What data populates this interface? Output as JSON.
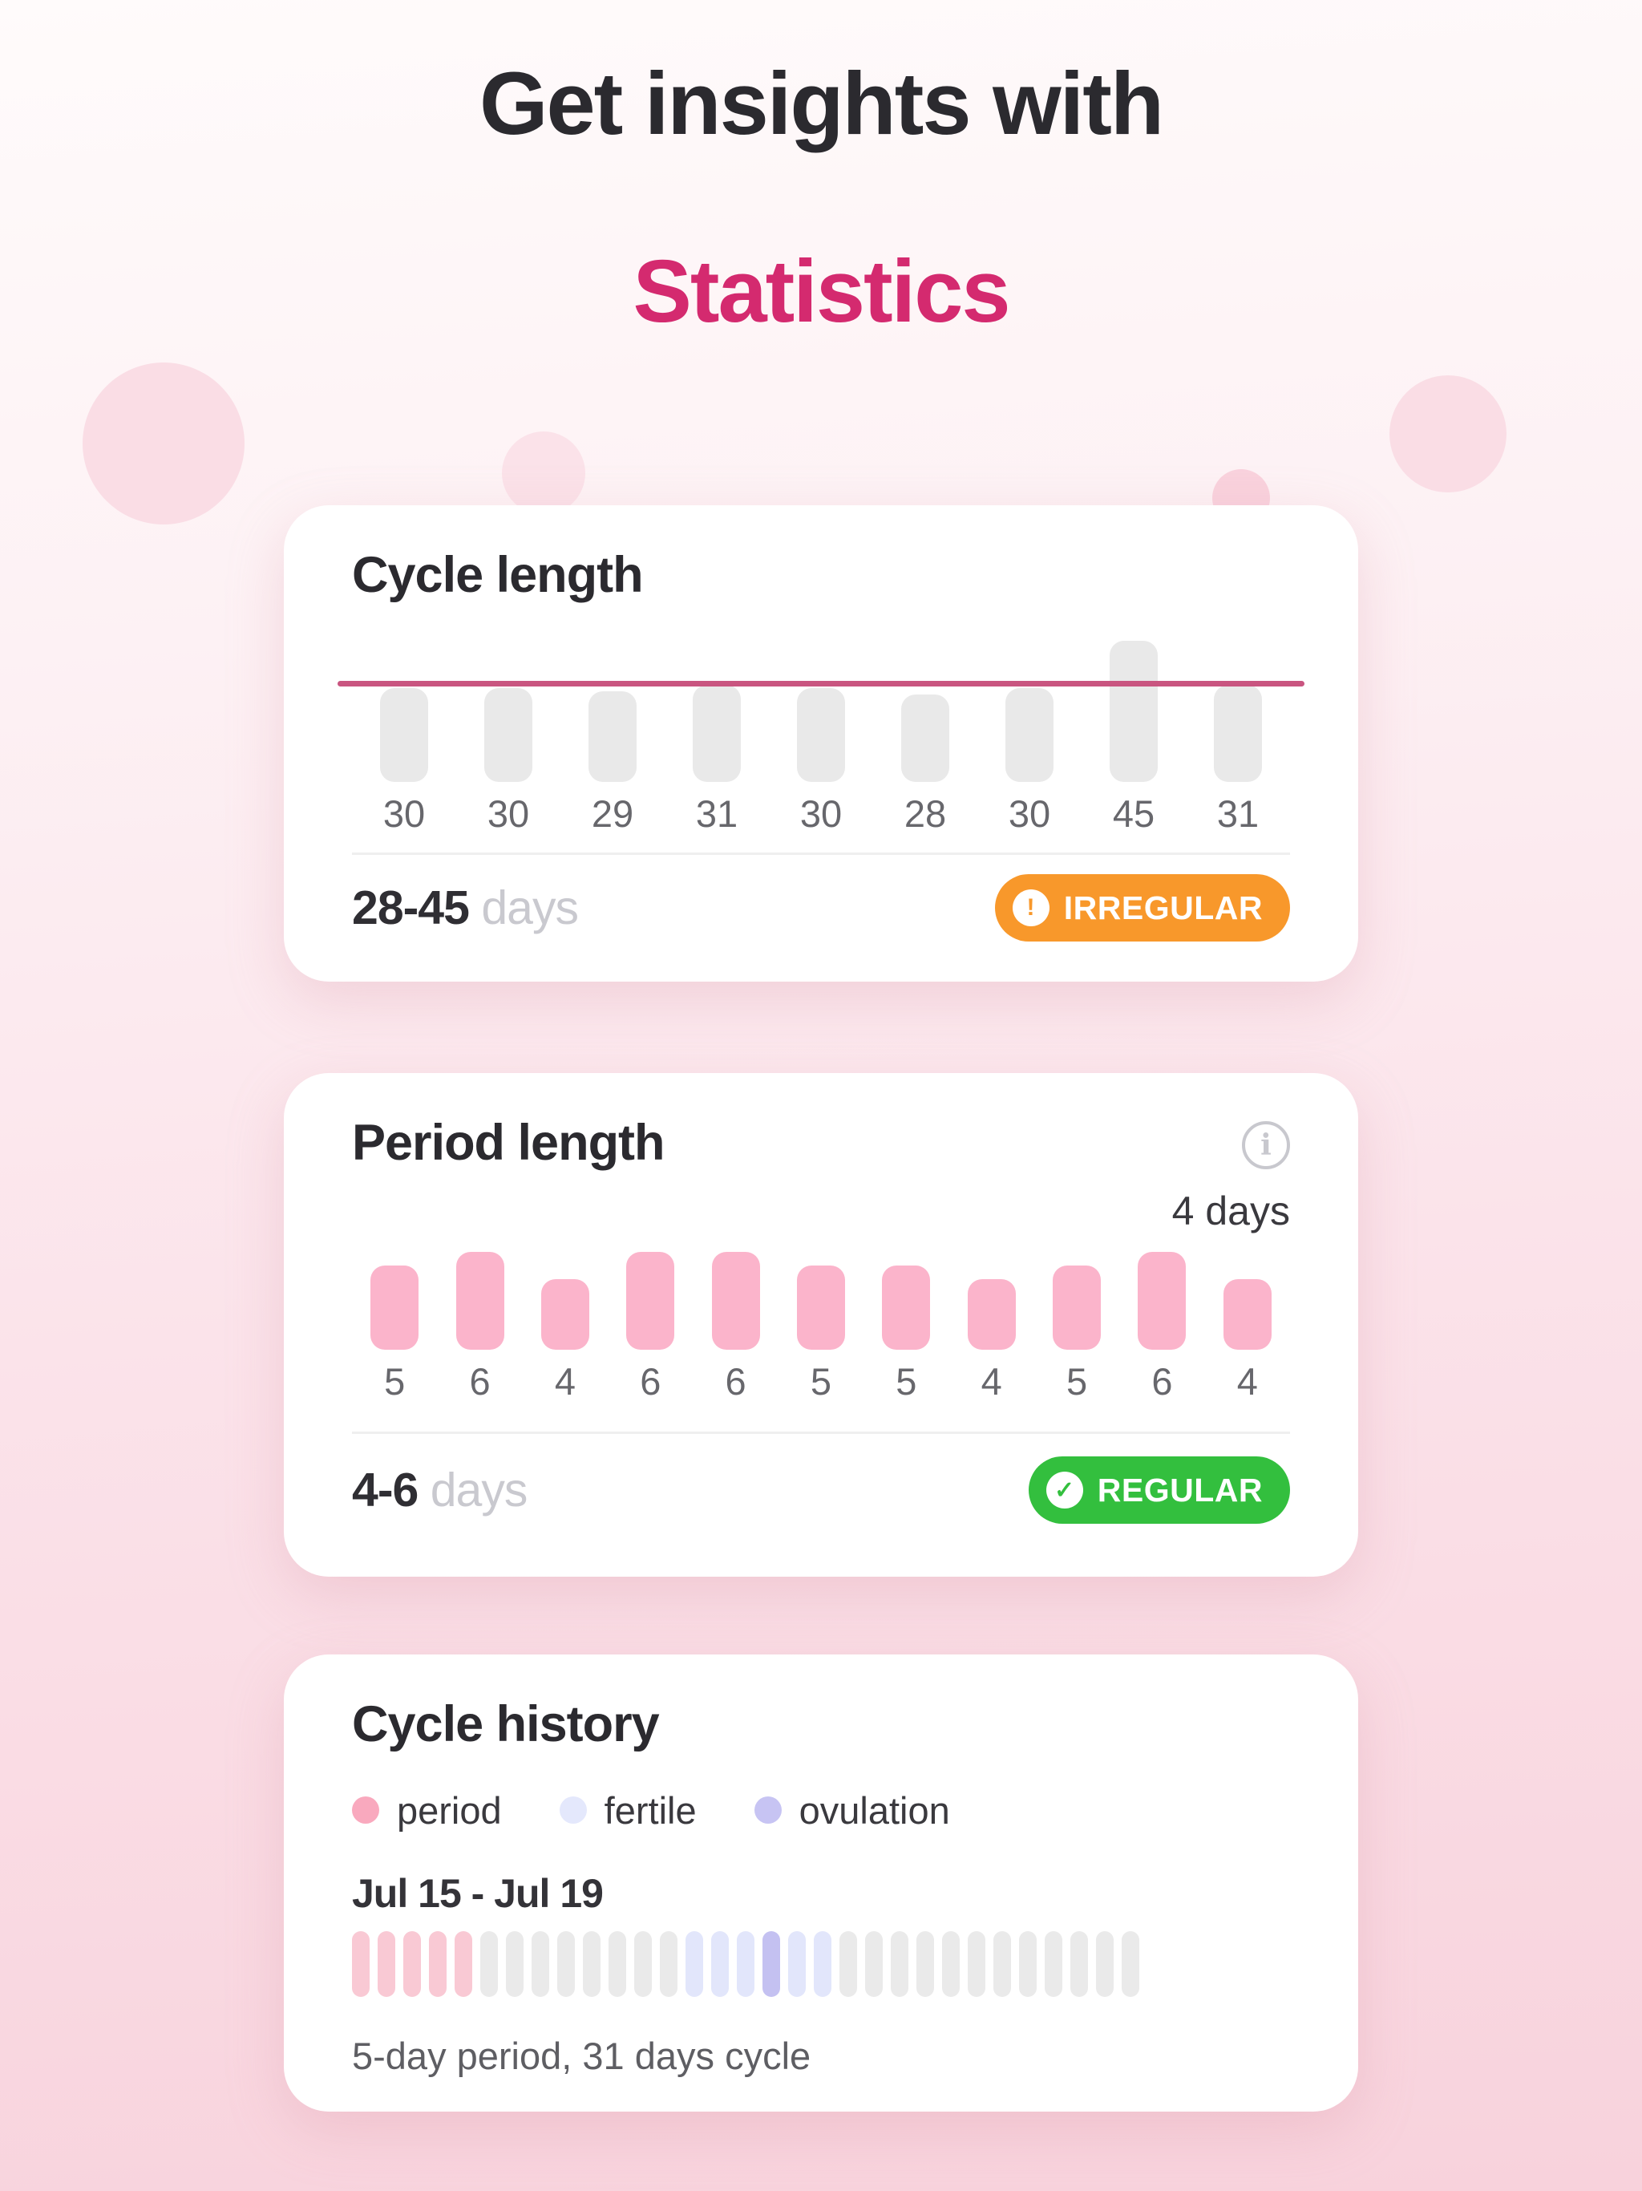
{
  "header": {
    "title_line1": "Get insights with",
    "title_line2": "Statistics",
    "accent_color": "#d42a6f"
  },
  "cycle_length_card": {
    "title": "Cycle length",
    "range_value": "28-45",
    "range_unit": "days",
    "badge": {
      "label": "IRREGULAR",
      "icon": "exclamation-icon",
      "color": "#f8982b"
    },
    "chart_data": {
      "type": "bar",
      "categories": [
        "30",
        "30",
        "29",
        "31",
        "30",
        "28",
        "30",
        "45",
        "31"
      ],
      "values": [
        30,
        30,
        29,
        31,
        30,
        28,
        30,
        45,
        31
      ],
      "bar_color": "#e9e9e9",
      "reference_line_color": "#c95580",
      "legend_position": "none",
      "grid": false
    }
  },
  "period_length_card": {
    "title": "Period length",
    "info_icon": "info-icon",
    "selected_value": "4 days",
    "range_value": "4-6",
    "range_unit": "days",
    "badge": {
      "label": "REGULAR",
      "icon": "check-icon",
      "color": "#33bf3e"
    },
    "chart_data": {
      "type": "bar",
      "categories": [
        "5",
        "6",
        "4",
        "6",
        "6",
        "5",
        "5",
        "4",
        "5",
        "6",
        "4"
      ],
      "values": [
        5,
        6,
        4,
        6,
        6,
        5,
        5,
        4,
        5,
        6,
        4
      ],
      "bar_color": "#fbb4cb",
      "legend_position": "none",
      "grid": false
    }
  },
  "cycle_history_card": {
    "title": "Cycle history",
    "legend": [
      {
        "label": "period",
        "color": "#f9a9be"
      },
      {
        "label": "fertile",
        "color": "#e4e8fc"
      },
      {
        "label": "ovulation",
        "color": "#c7c4f3"
      }
    ],
    "date_range": "Jul 15 - Jul 19",
    "summary": "5-day period, 31 days cycle",
    "chart_data": {
      "type": "timeline",
      "total_days": 31,
      "day_types": [
        "period",
        "period",
        "period",
        "period",
        "period",
        "none",
        "none",
        "none",
        "none",
        "none",
        "none",
        "none",
        "none",
        "fertile",
        "fertile",
        "fertile",
        "ovulation",
        "fertile",
        "fertile",
        "none",
        "none",
        "none",
        "none",
        "none",
        "none",
        "none",
        "none",
        "none",
        "none",
        "none",
        "none"
      ],
      "type_colors": {
        "period": "#f9c9d4",
        "none": "#eaeaea",
        "fertile": "#e2e6fb",
        "ovulation": "#c4c1f1"
      }
    }
  }
}
